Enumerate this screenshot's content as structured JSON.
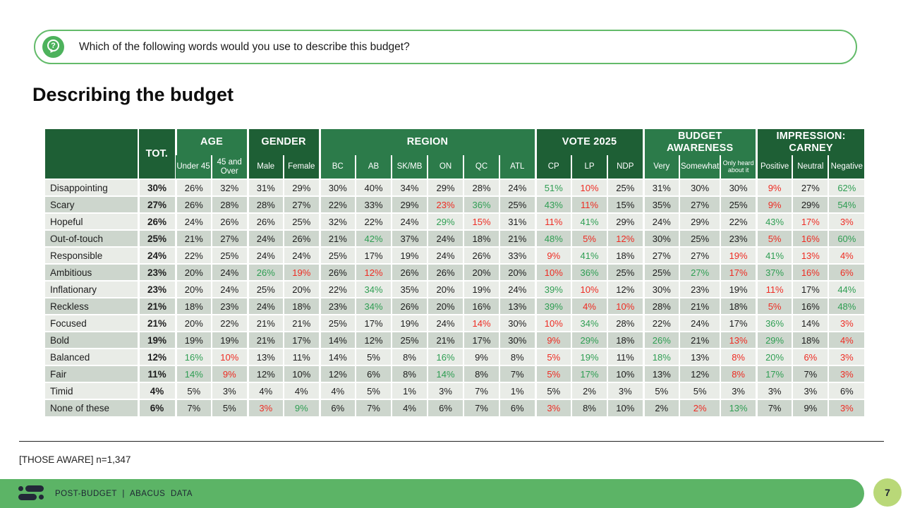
{
  "question": {
    "icon": "question-bubble-icon",
    "text": "Which of the following words would you use to describe this budget?"
  },
  "chart_data": {
    "type": "table",
    "title": "Describing the budget",
    "total_label": "TOT.",
    "column_groups": [
      {
        "label": "AGE",
        "shade": "light",
        "cols": [
          "Under 45",
          "45 and Over"
        ]
      },
      {
        "label": "GENDER",
        "shade": "dark",
        "cols": [
          "Male",
          "Female"
        ]
      },
      {
        "label": "REGION",
        "shade": "light",
        "cols": [
          "BC",
          "AB",
          "SK/MB",
          "ON",
          "QC",
          "ATL"
        ]
      },
      {
        "label": "VOTE 2025",
        "shade": "dark",
        "cols": [
          "CP",
          "LP",
          "NDP"
        ]
      },
      {
        "label": "BUDGET AWARENESS",
        "shade": "light",
        "cols": [
          "Very",
          "Somewhat",
          "Only heard about it"
        ]
      },
      {
        "label": "IMPRESSION: CARNEY",
        "shade": "dark",
        "cols": [
          "Positive",
          "Neutral",
          "Negative"
        ]
      }
    ],
    "value_color_codes": {
      "g": "green-highlight",
      "r": "red-highlight",
      "none": "black"
    },
    "rows": [
      {
        "label": "Disappointing",
        "values": [
          "30%",
          "26%",
          "32%",
          "31%",
          "29%",
          "30%",
          "40%",
          "34%",
          "29%",
          "28%",
          "24%",
          "g:51%",
          "r:10%",
          "25%",
          "31%",
          "30%",
          "30%",
          "r:9%",
          "27%",
          "g:62%"
        ]
      },
      {
        "label": "Scary",
        "values": [
          "27%",
          "26%",
          "28%",
          "28%",
          "27%",
          "22%",
          "33%",
          "29%",
          "r:23%",
          "g:36%",
          "25%",
          "g:43%",
          "r:11%",
          "15%",
          "35%",
          "27%",
          "25%",
          "r:9%",
          "29%",
          "g:54%"
        ]
      },
      {
        "label": "Hopeful",
        "values": [
          "26%",
          "24%",
          "26%",
          "26%",
          "25%",
          "32%",
          "22%",
          "24%",
          "g:29%",
          "r:15%",
          "31%",
          "r:11%",
          "g:41%",
          "29%",
          "24%",
          "29%",
          "22%",
          "g:43%",
          "r:17%",
          "r:3%"
        ]
      },
      {
        "label": "Out-of-touch",
        "values": [
          "25%",
          "21%",
          "27%",
          "24%",
          "26%",
          "21%",
          "g:42%",
          "37%",
          "24%",
          "18%",
          "21%",
          "g:48%",
          "r:5%",
          "r:12%",
          "30%",
          "25%",
          "23%",
          "r:5%",
          "r:16%",
          "g:60%"
        ]
      },
      {
        "label": "Responsible",
        "values": [
          "24%",
          "22%",
          "25%",
          "24%",
          "24%",
          "25%",
          "17%",
          "19%",
          "24%",
          "26%",
          "33%",
          "r:9%",
          "g:41%",
          "18%",
          "27%",
          "27%",
          "r:19%",
          "g:41%",
          "r:13%",
          "r:4%"
        ]
      },
      {
        "label": "Ambitious",
        "values": [
          "23%",
          "20%",
          "24%",
          "g:26%",
          "r:19%",
          "26%",
          "r:12%",
          "26%",
          "26%",
          "20%",
          "20%",
          "r:10%",
          "g:36%",
          "25%",
          "25%",
          "g:27%",
          "r:17%",
          "g:37%",
          "r:16%",
          "r:6%"
        ]
      },
      {
        "label": "Inflationary",
        "values": [
          "23%",
          "20%",
          "24%",
          "25%",
          "20%",
          "22%",
          "g:34%",
          "35%",
          "20%",
          "19%",
          "24%",
          "g:39%",
          "r:10%",
          "12%",
          "30%",
          "23%",
          "19%",
          "r:11%",
          "17%",
          "g:44%"
        ]
      },
      {
        "label": "Reckless",
        "values": [
          "21%",
          "18%",
          "23%",
          "24%",
          "18%",
          "23%",
          "g:34%",
          "26%",
          "20%",
          "16%",
          "13%",
          "g:39%",
          "r:4%",
          "r:10%",
          "28%",
          "21%",
          "18%",
          "r:5%",
          "16%",
          "g:48%"
        ]
      },
      {
        "label": "Focused",
        "values": [
          "21%",
          "20%",
          "22%",
          "21%",
          "21%",
          "25%",
          "17%",
          "19%",
          "24%",
          "r:14%",
          "30%",
          "r:10%",
          "g:34%",
          "28%",
          "22%",
          "24%",
          "17%",
          "g:36%",
          "14%",
          "r:3%"
        ]
      },
      {
        "label": "Bold",
        "values": [
          "19%",
          "19%",
          "19%",
          "21%",
          "17%",
          "14%",
          "12%",
          "25%",
          "21%",
          "17%",
          "30%",
          "r:9%",
          "g:29%",
          "18%",
          "g:26%",
          "21%",
          "r:13%",
          "g:29%",
          "18%",
          "r:4%"
        ]
      },
      {
        "label": "Balanced",
        "values": [
          "12%",
          "g:16%",
          "r:10%",
          "13%",
          "11%",
          "14%",
          "5%",
          "8%",
          "g:16%",
          "9%",
          "8%",
          "r:5%",
          "g:19%",
          "11%",
          "g:18%",
          "13%",
          "r:8%",
          "g:20%",
          "r:6%",
          "r:3%"
        ]
      },
      {
        "label": "Fair",
        "values": [
          "11%",
          "g:14%",
          "r:9%",
          "12%",
          "10%",
          "12%",
          "6%",
          "8%",
          "g:14%",
          "8%",
          "7%",
          "r:5%",
          "g:17%",
          "10%",
          "13%",
          "12%",
          "r:8%",
          "g:17%",
          "7%",
          "r:3%"
        ]
      },
      {
        "label": "Timid",
        "values": [
          "4%",
          "5%",
          "3%",
          "4%",
          "4%",
          "4%",
          "5%",
          "1%",
          "3%",
          "7%",
          "1%",
          "5%",
          "2%",
          "3%",
          "5%",
          "5%",
          "3%",
          "3%",
          "3%",
          "6%"
        ]
      },
      {
        "label": "None of these",
        "values": [
          "6%",
          "7%",
          "5%",
          "r:3%",
          "g:9%",
          "6%",
          "7%",
          "4%",
          "6%",
          "7%",
          "6%",
          "r:3%",
          "8%",
          "10%",
          "2%",
          "r:2%",
          "g:13%",
          "7%",
          "9%",
          "r:3%"
        ]
      }
    ]
  },
  "footnote": "[THOSE AWARE] n=1,347",
  "footer": {
    "brand": "POST-BUDGET | ABACUS DATA",
    "page": "7",
    "logo": "abacus-logo-icon"
  },
  "colors": {
    "header_green_dark": "#1e5f35",
    "header_green_light": "#2c7b4a",
    "row_stripe_light": "#e9ece7",
    "row_stripe_dark": "#cdd6cd",
    "value_green": "#2f9e53",
    "value_red": "#ee2c23",
    "footer_bar_green": "#5cb466",
    "page_circle_green": "#b9d878",
    "question_border_green": "#63bb6a",
    "icon_green": "#4db25c"
  }
}
